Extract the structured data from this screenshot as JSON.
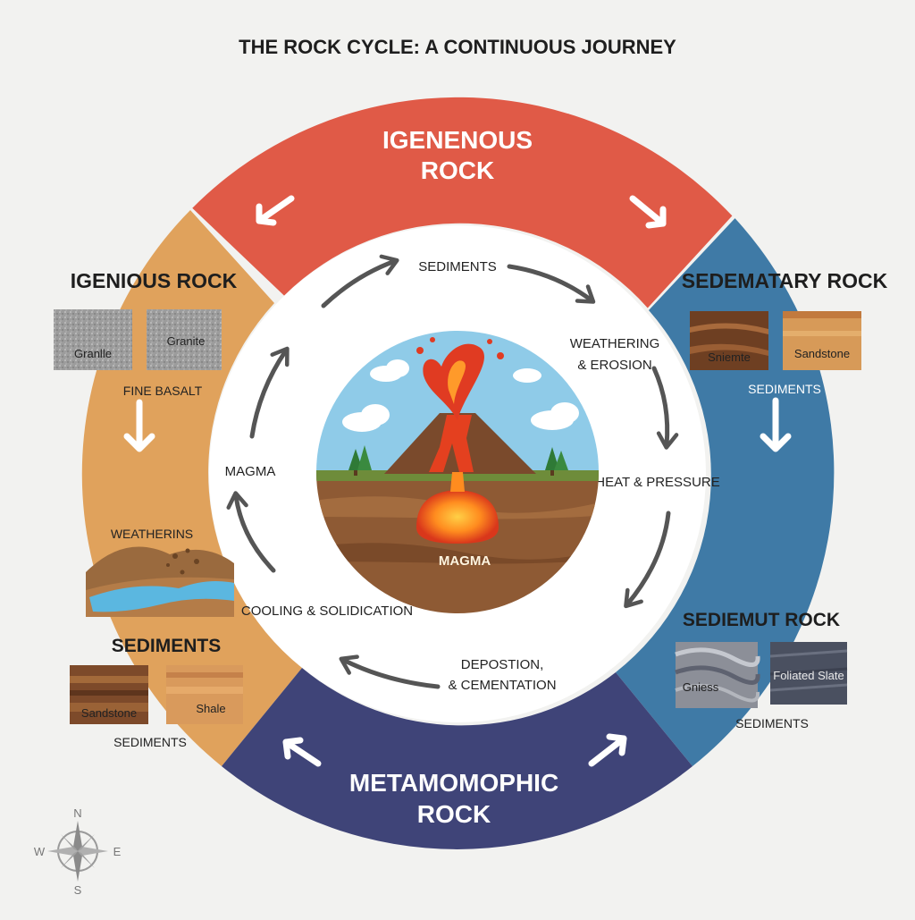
{
  "title": "THE ROCK CYCLE: A CONTINUOUS JOURNEY",
  "colors": {
    "igneous_band": "#e05a47",
    "sedimentary_band": "#3f7aa6",
    "metamorphic_band": "#3f4478",
    "igneous_side_band": "#e0a25c",
    "arrow": "#555555"
  },
  "bands": {
    "top": {
      "line1": "IGENENOUS",
      "line2": "ROCK"
    },
    "bottom": {
      "line1": "METAMOMOPHIC",
      "line2": "ROCK"
    }
  },
  "left_panel": {
    "heading": "IGENIOUS ROCK",
    "samples": [
      {
        "label": "Granlle",
        "texture": "granite"
      },
      {
        "label": "Granite",
        "texture": "granite"
      }
    ],
    "sample_caption": "FINE BASALT",
    "weathering_label": "WEATHERINS",
    "sediments_heading": "SEDIMENTS",
    "sediment_samples": [
      {
        "label": "Sandstone",
        "texture": "layered-brown"
      },
      {
        "label": "Shale",
        "texture": "layered-tan"
      }
    ],
    "sediments_caption": "SEDIMENTS"
  },
  "right_panel": {
    "heading": "SEDEMATARY ROCK",
    "samples": [
      {
        "label": "Sniemte",
        "texture": "layered-brown"
      },
      {
        "label": "Sandstone",
        "texture": "layered-tan"
      }
    ],
    "sample_caption": "SEDIMENTS",
    "lower_heading": "SEDIEMUT ROCK",
    "lower_samples": [
      {
        "label": "Gniess",
        "texture": "gneiss"
      },
      {
        "label": "Foliated Slate",
        "texture": "slate"
      }
    ],
    "lower_caption": "SEDIMENTS"
  },
  "inner_cycle": {
    "sediments": "SEDIMENTS",
    "weathering_line1": "WEATHERING",
    "weathering_line2": "& EROSION",
    "heat_pressure": "HEAT & PRESSURE",
    "deposition_line1": "DEPOSTION,",
    "deposition_line2": "& CEMENTATION",
    "cooling": "COOLING & SOLIDICATION",
    "magma_left": "MAGMA"
  },
  "center": {
    "magma_label": "MAGMA",
    "icons": [
      "volcano-icon",
      "cloud-icon",
      "tree-icon"
    ]
  },
  "compass": {
    "n": "N",
    "s": "S",
    "e": "E",
    "w": "W"
  }
}
